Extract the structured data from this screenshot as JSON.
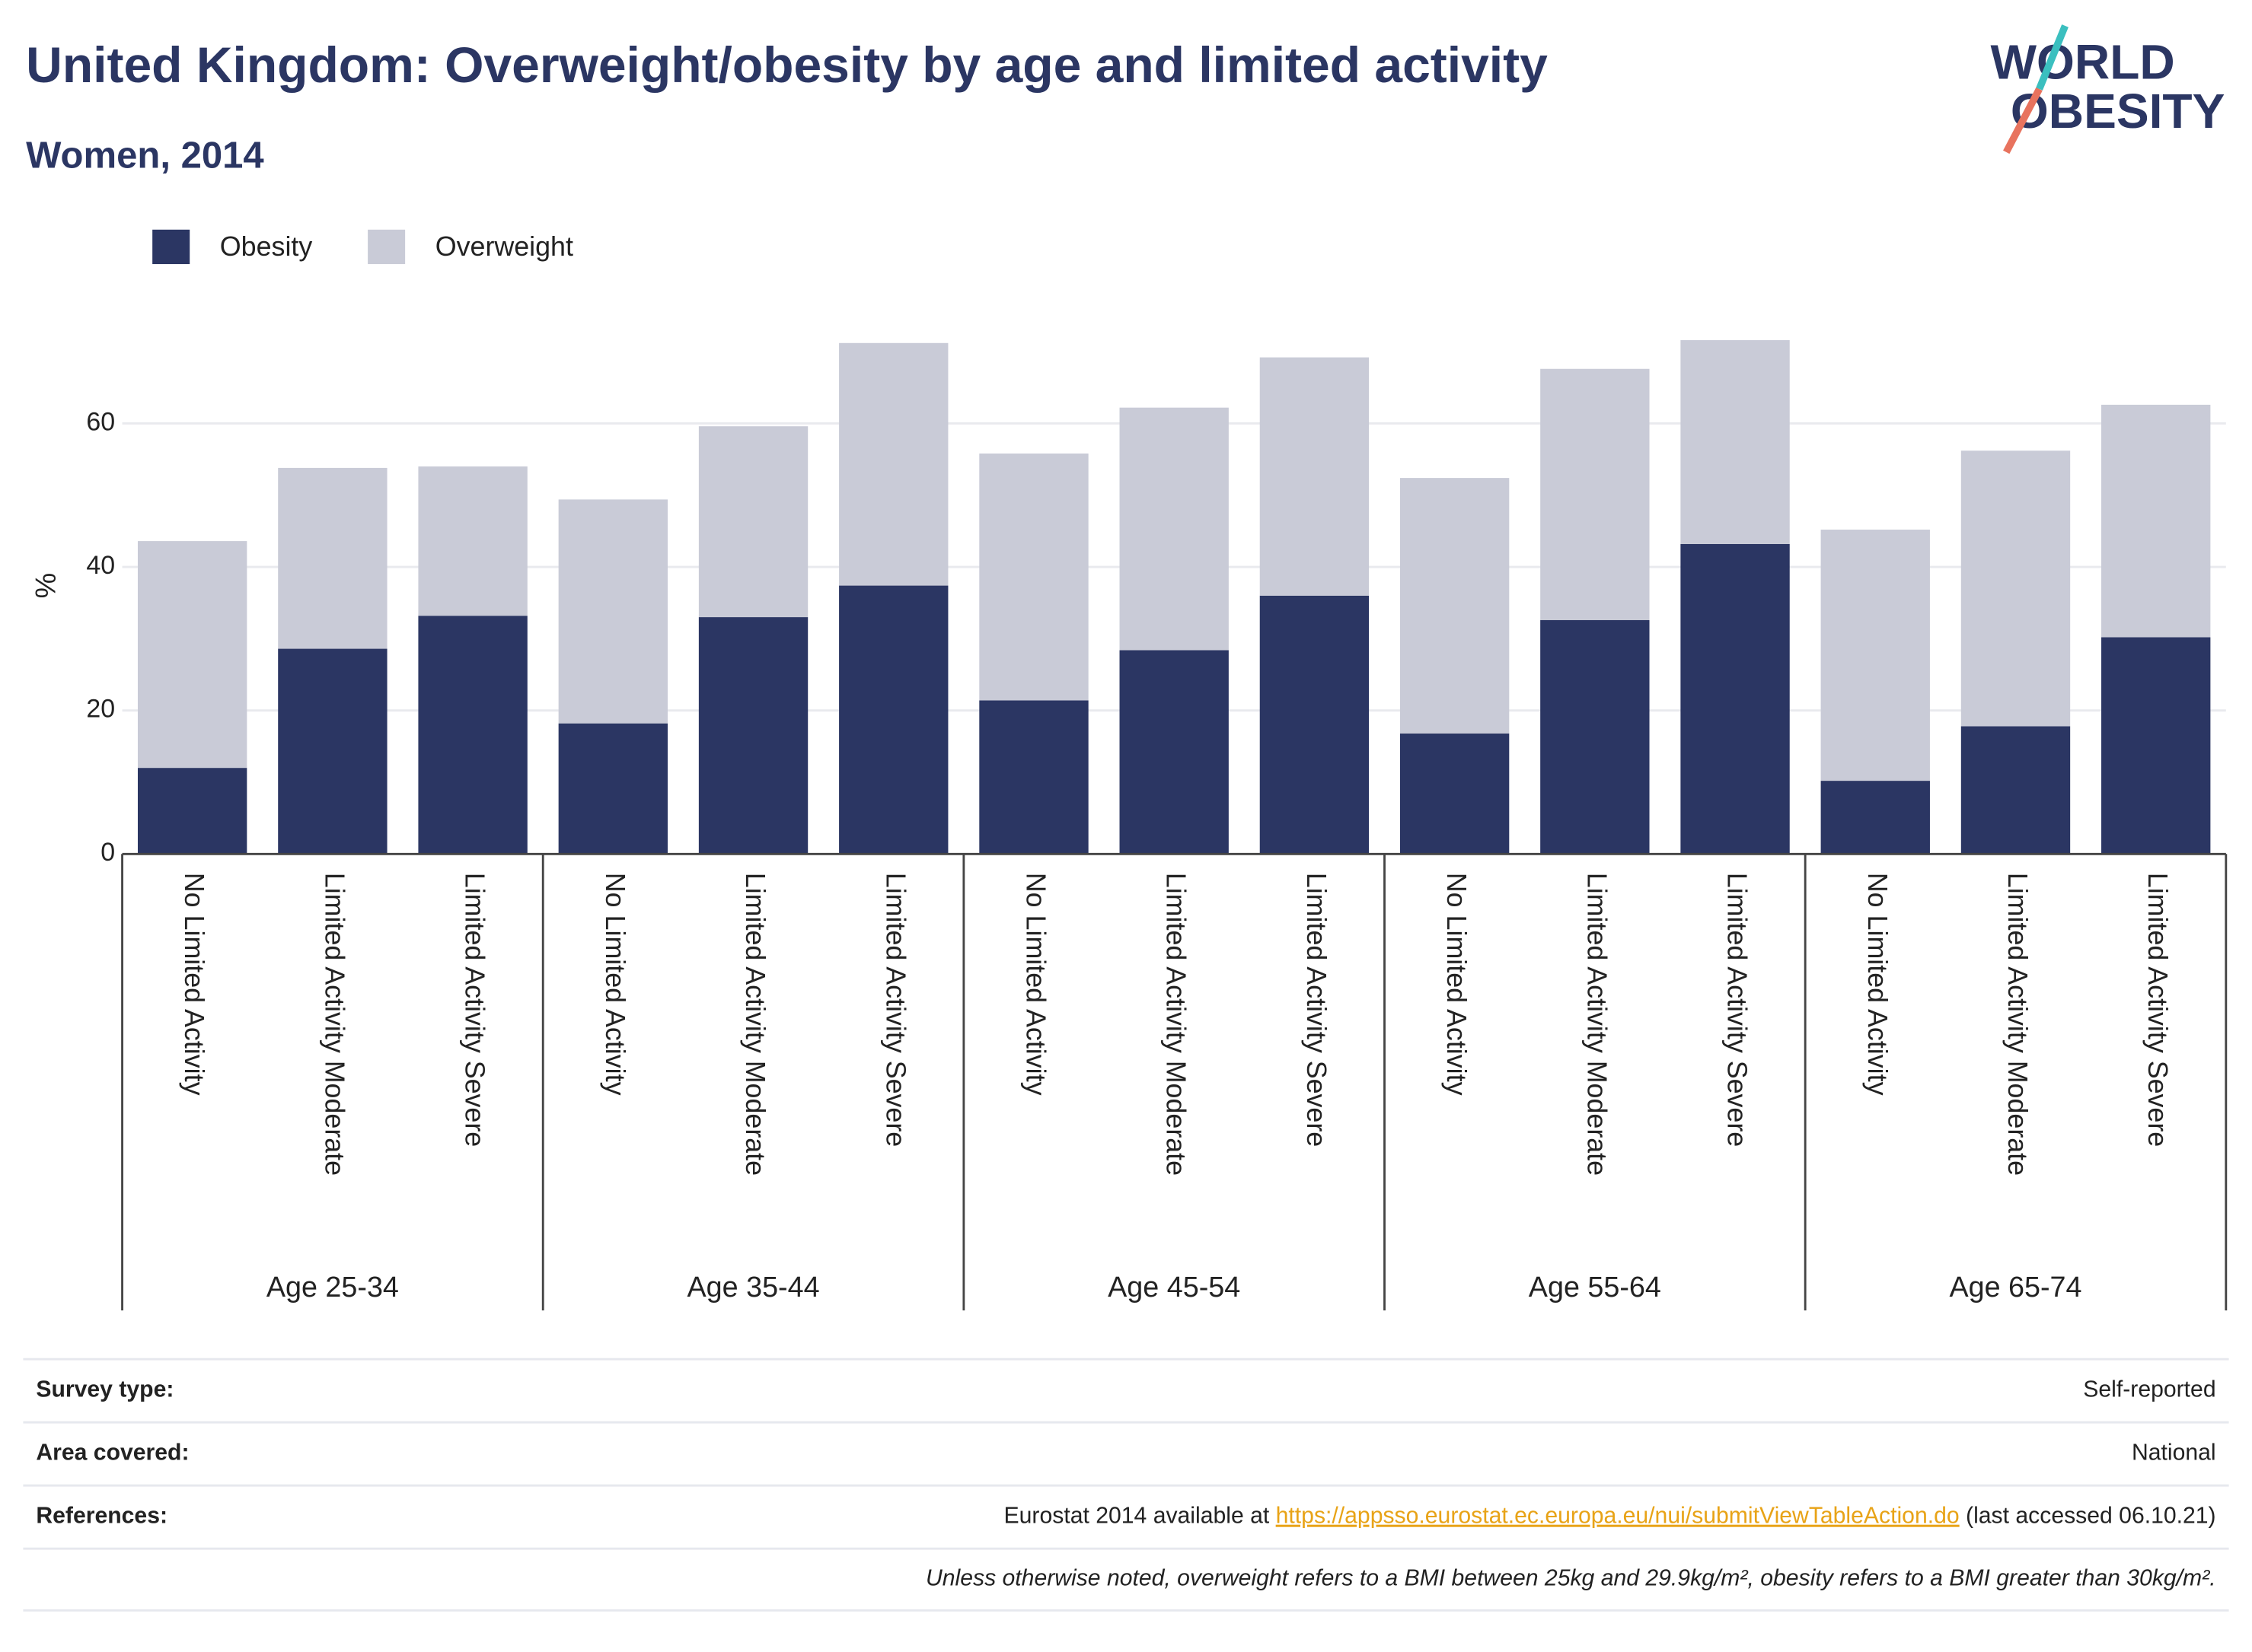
{
  "chart_data": {
    "type": "stacked_bar",
    "title": "United Kingdom: Overweight/obesity by age and limited activity",
    "subtitle": "Women, 2014",
    "logo": [
      "WORLD",
      "OBESITY"
    ],
    "y_label": "%",
    "categories": [
      "No Limited Activity",
      "Limited Activity Moderate",
      "Limited Activity Severe",
      "No Limited Activity",
      "Limited Activity Moderate",
      "Limited Activity Severe",
      "No Limited Activity",
      "Limited Activity Moderate",
      "Limited Activity Severe",
      "No Limited Activity",
      "Limited Activity Moderate",
      "Limited Activity Severe",
      "No Limited Activity",
      "Limited Activity Moderate",
      "Limited Activity Severe"
    ],
    "groups": [
      "Age 25-34",
      "Age 35-44",
      "Age 45-54",
      "Age 55-64",
      "Age 65-74"
    ],
    "series": [
      {
        "name": "Obesity",
        "color": "#2b3663",
        "values": [
          12,
          28.6,
          33.2,
          18.2,
          33,
          37.4,
          21.4,
          28.4,
          36,
          16.8,
          32.6,
          43.2,
          10.2,
          17.8,
          30.2
        ]
      },
      {
        "name": "Overweight",
        "color": "#c9cbd7",
        "values": [
          31.6,
          25.2,
          20.8,
          31.2,
          26.6,
          33.8,
          34.4,
          33.8,
          33.2,
          35.6,
          35,
          28.4,
          35,
          38.4,
          32.4
        ]
      }
    ],
    "ylim": [
      0,
      75
    ],
    "yticks": [
      0,
      20,
      40,
      60
    ],
    "grid": true,
    "legend": "top-left"
  },
  "footer": {
    "rows": [
      {
        "label": "Survey type:",
        "value": "Self-reported"
      },
      {
        "label": "Area covered:",
        "value": "National"
      },
      {
        "label": "References:",
        "value": "Eurostat 2014 available at",
        "link": "https://appsso.eurostat.ec.europa.eu/nui/submitViewTableAction.do",
        "after": "(last accessed 06.10.21)"
      }
    ],
    "note": "Unless otherwise noted, overweight refers to a BMI between 25kg and 29.9kg/m², obesity refers to a BMI greater than 30kg/m²."
  }
}
